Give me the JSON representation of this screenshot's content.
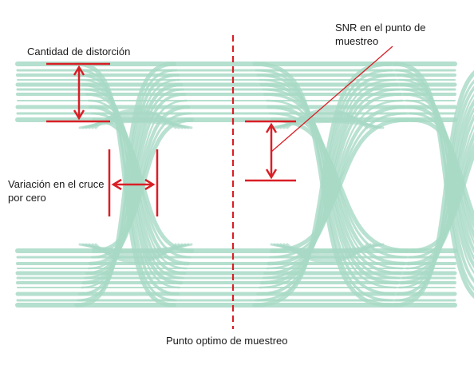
{
  "labels": {
    "distortion": "Cantidad de distorción",
    "variation_line1": "Variación en el cruce",
    "variation_line2": "por cero",
    "snr_line1": "SNR en el punto de",
    "snr_line2": "muestreo",
    "sampling_point": "Punto optimo de muestreo"
  },
  "colors": {
    "eye_trace": "#a8d9c6",
    "annotation": "#d91f26",
    "leader_line": "#d91f26",
    "text": "#1a1a1a"
  }
}
